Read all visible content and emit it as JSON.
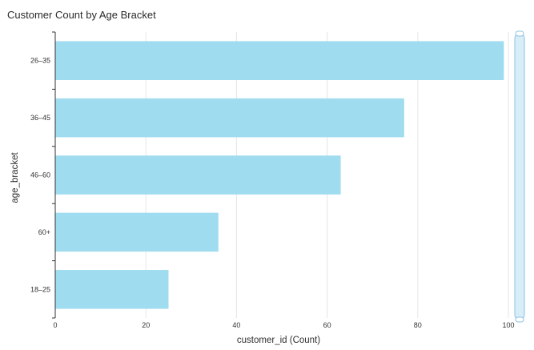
{
  "title": "Customer Count by Age Bracket",
  "colors": {
    "bar": "#9fdcf0",
    "grid": "#e6e6e6",
    "axis": "#333333",
    "scroll_fill": "#d7edf8",
    "scroll_border": "#8fc2de"
  },
  "chart_data": {
    "type": "bar",
    "orientation": "horizontal",
    "categories": [
      "26–35",
      "36–45",
      "46–60",
      "60+",
      "18–25"
    ],
    "values": [
      99,
      77,
      63,
      36,
      25
    ],
    "title": "Customer Count by Age Bracket",
    "xlabel": "customer_id (Count)",
    "ylabel": "age_bracket",
    "xlim": [
      0,
      100
    ],
    "xticks": [
      0,
      20,
      40,
      60,
      80,
      100
    ],
    "grid": true,
    "legend": "none"
  }
}
